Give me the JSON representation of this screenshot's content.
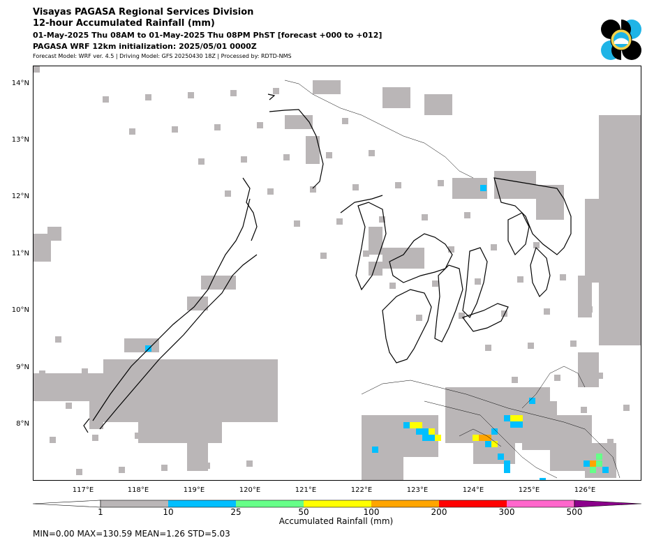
{
  "header": {
    "line1": "Visayas PAGASA Regional Services Division",
    "line2": "12-hour Accumulated Rainfall (mm)",
    "line3": "01-May-2025 Thu 08AM to 01-May-2025 Thu 08PM PhST [forecast +000 to +012]",
    "line4": "PAGASA WRF 12km initialization: 2025/05/01 0000Z",
    "line5": "Forecast Model: WRF ver. 4.5 | Driving Model: GFS 20250430 18Z | Processed by: RDTD-NMS"
  },
  "axes": {
    "lat_labels": [
      "14°N",
      "13°N",
      "12°N",
      "11°N",
      "10°N",
      "9°N",
      "8°N"
    ],
    "lon_labels": [
      "117°E",
      "118°E",
      "119°E",
      "120°E",
      "121°E",
      "122°E",
      "123°E",
      "124°E",
      "125°E",
      "126°E"
    ]
  },
  "colorbar": {
    "title": "Accumulated Rainfall (mm)",
    "tick_labels": [
      "1",
      "10",
      "25",
      "50",
      "100",
      "200",
      "300",
      "500"
    ],
    "colors": [
      "#bab6b7",
      "#00bfff",
      "#66ff88",
      "#ffff00",
      "#ffa500",
      "#ff0000",
      "#ff66cc",
      "#8b008b"
    ]
  },
  "stats": {
    "text": "MIN=0.00   MAX=130.59   MEAN=1.26   STD=5.03"
  },
  "colors": {
    "rain_light": "#bab6b7",
    "rain_blue": "#00bfff",
    "rain_green": "#66ff88",
    "rain_yellow": "#ffff00",
    "rain_orange": "#ffa500",
    "coast": "#000000"
  }
}
